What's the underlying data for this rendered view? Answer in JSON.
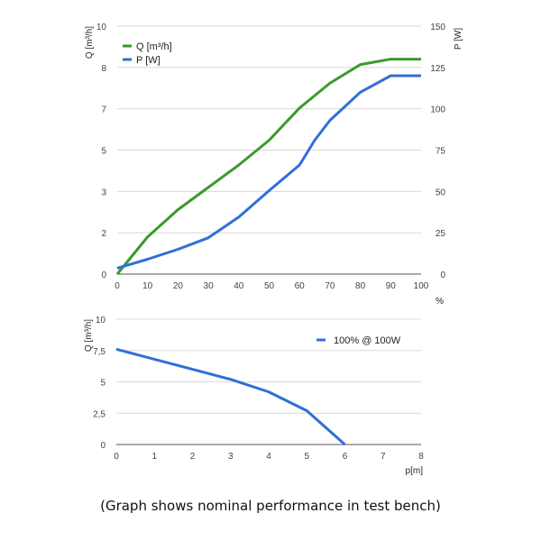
{
  "chart_data": [
    {
      "type": "line",
      "x": [
        0,
        10,
        20,
        30,
        40,
        50,
        60,
        70,
        80,
        90,
        100
      ],
      "xlabel": "%",
      "xlim": [
        0,
        100
      ],
      "x_ticks": [
        "0",
        "10",
        "20",
        "30",
        "40",
        "50",
        "60",
        "70",
        "80",
        "90",
        "100"
      ],
      "ylabel": "Q [m³/h]",
      "ylim": [
        0,
        10
      ],
      "y_tick_labels": [
        "0",
        "2",
        "3",
        "5",
        "7",
        "8",
        "10"
      ],
      "y2label": "P [W]",
      "y2lim": [
        0,
        150
      ],
      "y2_tick_labels": [
        "0",
        "25",
        "50",
        "75",
        "100",
        "125",
        "150"
      ],
      "grid": true,
      "legend": "top-left",
      "series": [
        {
          "name": "Q [m³/h]",
          "axis": "left",
          "color": "#3a9a2a",
          "x": [
            0,
            10,
            20,
            30,
            40,
            50,
            60,
            70,
            80,
            90,
            100
          ],
          "values": [
            0,
            1.5,
            2.6,
            3.5,
            4.4,
            5.4,
            6.7,
            7.7,
            8.45,
            8.67,
            8.67
          ]
        },
        {
          "name": "P [W]",
          "axis": "right",
          "color": "#2f6fd8",
          "x": [
            0,
            10,
            20,
            30,
            40,
            50,
            60,
            65,
            70,
            80,
            90,
            100
          ],
          "values": [
            3.6,
            9,
            15,
            22,
            34.5,
            50.5,
            66,
            81,
            93,
            110,
            120,
            120
          ]
        }
      ]
    },
    {
      "type": "line",
      "xlabel": "p[m]",
      "xlim": [
        0,
        8
      ],
      "x_ticks": [
        "0",
        "1",
        "2",
        "3",
        "4",
        "5",
        "6",
        "7",
        "8"
      ],
      "ylabel": "Q [m³/h]",
      "ylim": [
        0,
        10
      ],
      "y_tick_labels": [
        "0",
        "2,5",
        "5",
        "7,5",
        "10"
      ],
      "grid": true,
      "legend": "top-right",
      "series": [
        {
          "name": "100% @ 100W",
          "color": "#2f6fd8",
          "x": [
            0,
            1,
            2,
            3,
            4,
            5,
            6
          ],
          "values": [
            7.6,
            6.8,
            6.0,
            5.2,
            4.2,
            2.7,
            0
          ]
        }
      ]
    }
  ],
  "caption": "(Graph shows nominal performance in test bench)"
}
